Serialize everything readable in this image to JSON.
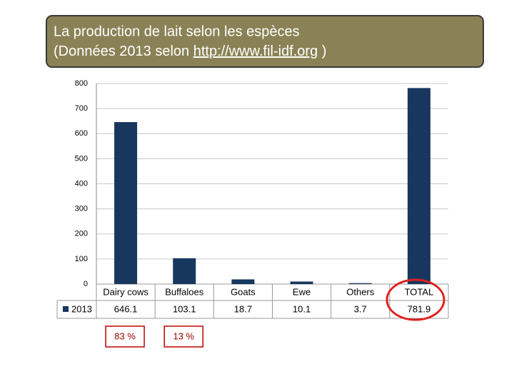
{
  "chart_data": {
    "type": "bar",
    "title": "La production de lait selon les espèces",
    "subtitle": {
      "before": "(Données 2013 selon ",
      "link": "http://www.fil-idf.org",
      "after": " )"
    },
    "categories": [
      "Dairy cows",
      "Buffaloes",
      "Goats",
      "Ewe",
      "Others",
      "TOTAL"
    ],
    "series": [
      {
        "name": "2013",
        "color": "#17375e",
        "values": [
          646.1,
          103.1,
          18.7,
          10.1,
          3.7,
          781.9
        ]
      }
    ],
    "ylim": [
      0,
      800
    ],
    "yticks": [
      0,
      100,
      200,
      300,
      400,
      500,
      600,
      700,
      800
    ],
    "grid": true,
    "annotations": [
      "83 %",
      "13 %"
    ]
  }
}
